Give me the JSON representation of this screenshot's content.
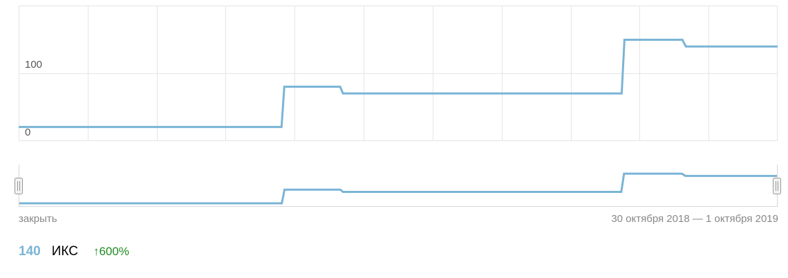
{
  "chart_data": {
    "type": "line",
    "step": true,
    "ylim": [
      0,
      200
    ],
    "y_ticks": [
      {
        "value": 0,
        "label": "0"
      },
      {
        "value": 100,
        "label": "100"
      }
    ],
    "points": [
      {
        "x": 0,
        "y": 20
      },
      {
        "x": 0.3464,
        "y": 20
      },
      {
        "x": 0.35,
        "y": 80
      },
      {
        "x": 0.4236,
        "y": 80
      },
      {
        "x": 0.4273,
        "y": 70
      },
      {
        "x": 0.7945,
        "y": 70
      },
      {
        "x": 0.7982,
        "y": 150
      },
      {
        "x": 0.8745,
        "y": 150
      },
      {
        "x": 0.8791,
        "y": 140
      },
      {
        "x": 1,
        "y": 140
      }
    ],
    "line_color": "#7ab4d6",
    "grid": true
  },
  "navigator": {
    "close_label": "закрыть",
    "date_range": "30 октября 2018 — 1 октября 2019"
  },
  "summary": {
    "value": "140",
    "label": "ИКС",
    "change": "↑600%",
    "value_color": "#7ab4d6",
    "change_color": "#1e8a1e"
  }
}
